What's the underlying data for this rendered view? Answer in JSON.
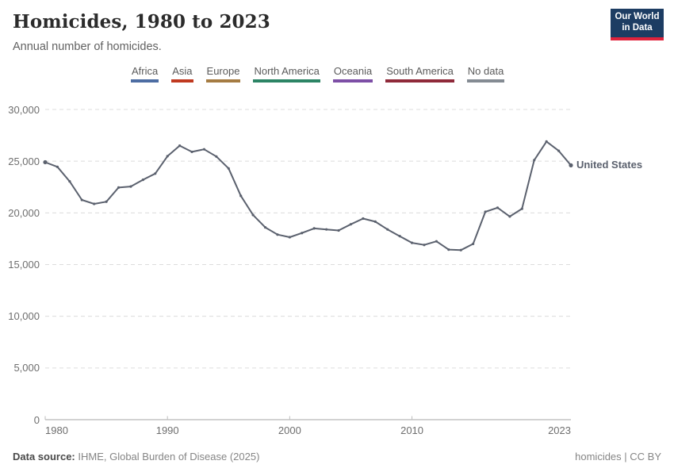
{
  "header": {
    "title": "Homicides, 1980 to 2023",
    "subtitle": "Annual number of homicides.",
    "logo": {
      "line1": "Our World",
      "line2": "in Data",
      "bg_color": "#1d3d63",
      "accent_color": "#e0233c"
    }
  },
  "legend": {
    "items": [
      {
        "label": "Africa",
        "color": "#4d6da3"
      },
      {
        "label": "Asia",
        "color": "#c03a20"
      },
      {
        "label": "Europe",
        "color": "#a57c43"
      },
      {
        "label": "North America",
        "color": "#2c8465"
      },
      {
        "label": "Oceania",
        "color": "#7d4fa6"
      },
      {
        "label": "South America",
        "color": "#8f2a3a"
      },
      {
        "label": "No data",
        "color": "#848b93"
      }
    ]
  },
  "chart_data": {
    "type": "line",
    "title": "Homicides, 1980 to 2023",
    "subtitle": "Annual number of homicides.",
    "xlabel": "",
    "ylabel": "",
    "xlim": [
      1980,
      2023
    ],
    "ylim": [
      0,
      30000
    ],
    "grid": "horizontal-dashed",
    "legend_position": "top",
    "x": [
      1980,
      1981,
      1982,
      1983,
      1984,
      1985,
      1986,
      1987,
      1988,
      1989,
      1990,
      1991,
      1992,
      1993,
      1994,
      1995,
      1996,
      1997,
      1998,
      1999,
      2000,
      2001,
      2002,
      2003,
      2004,
      2005,
      2006,
      2007,
      2008,
      2009,
      2010,
      2011,
      2012,
      2013,
      2014,
      2015,
      2016,
      2017,
      2018,
      2019,
      2020,
      2021,
      2022,
      2023
    ],
    "series": [
      {
        "name": "United States",
        "color": "#5b616e",
        "values": [
          24900,
          24450,
          23050,
          21250,
          20870,
          21080,
          22450,
          22550,
          23200,
          23800,
          25480,
          26500,
          25900,
          26150,
          25450,
          24300,
          21650,
          19800,
          18600,
          17900,
          17650,
          18050,
          18500,
          18400,
          18300,
          18900,
          19450,
          19150,
          18400,
          17750,
          17100,
          16900,
          17250,
          16450,
          16400,
          17000,
          20100,
          20500,
          19650,
          20400,
          25100,
          26900,
          26000,
          24600
        ]
      }
    ],
    "y_ticks": [
      {
        "value": 0,
        "label": "0"
      },
      {
        "value": 5000,
        "label": "5,000"
      },
      {
        "value": 10000,
        "label": "10,000"
      },
      {
        "value": 15000,
        "label": "15,000"
      },
      {
        "value": 20000,
        "label": "20,000"
      },
      {
        "value": 25000,
        "label": "25,000"
      },
      {
        "value": 30000,
        "label": "30,000"
      }
    ],
    "x_ticks": [
      {
        "value": 1980,
        "label": "1980"
      },
      {
        "value": 1990,
        "label": "1990"
      },
      {
        "value": 2000,
        "label": "2000"
      },
      {
        "value": 2010,
        "label": "2010"
      },
      {
        "value": 2023,
        "label": "2023"
      }
    ]
  },
  "footer": {
    "source_label": "Data source:",
    "source_value": "IHME, Global Burden of Disease (2025)",
    "right": "homicides | CC BY"
  }
}
